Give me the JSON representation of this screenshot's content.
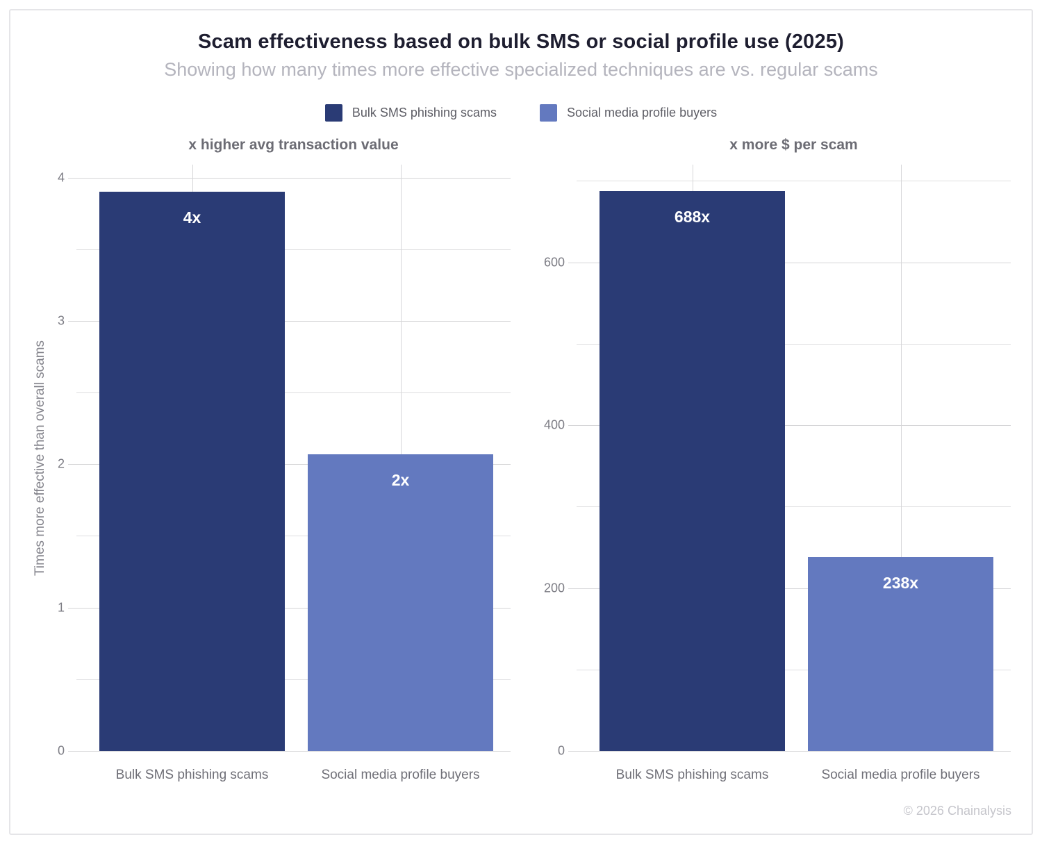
{
  "header": {
    "title": "Scam effectiveness based on bulk SMS or social profile use (2025)",
    "subtitle": "Showing how many times more effective specialized techniques are vs. regular scams"
  },
  "legend": {
    "items": [
      {
        "label": "Bulk SMS phishing scams",
        "color": "#2a3b75"
      },
      {
        "label": "Social media profile buyers",
        "color": "#6379bf"
      }
    ]
  },
  "chart_data": [
    {
      "type": "bar",
      "title": "x higher avg transaction value",
      "ylabel": "Times more effective than overall scams",
      "categories": [
        "Bulk SMS phishing scams",
        "Social media profile buyers"
      ],
      "values": [
        3.9,
        2.07
      ],
      "bar_labels": [
        "4x",
        "2x"
      ],
      "bar_colors": [
        "#2a3b75",
        "#6379bf"
      ],
      "ylim": [
        0,
        4.09
      ],
      "yticks_major": [
        0,
        1,
        2,
        3,
        4
      ],
      "yticks_minor": [
        0.5,
        1.5,
        2.5,
        3.5
      ],
      "grid": "on",
      "legend_position": "top"
    },
    {
      "type": "bar",
      "title": "x more $ per scam",
      "ylabel": "",
      "categories": [
        "Bulk SMS phishing scams",
        "Social media profile buyers"
      ],
      "values": [
        688,
        238
      ],
      "bar_labels": [
        "688x",
        "238x"
      ],
      "bar_colors": [
        "#2a3b75",
        "#6379bf"
      ],
      "ylim": [
        0,
        720
      ],
      "yticks_major": [
        0,
        200,
        400,
        600
      ],
      "yticks_minor": [
        100,
        300,
        500,
        700
      ],
      "grid": "on",
      "legend_position": "top"
    }
  ],
  "footer": {
    "copyright": "© 2026 Chainalysis"
  },
  "colors": {
    "bar_dark": "#2a3b75",
    "bar_light": "#6379bf",
    "gridline_major": "#d4d4d6",
    "gridline_minor": "#dedee0",
    "title_text": "#1e1e30",
    "subtitle_text": "#b4b4bd",
    "axis_text": "#7c7c84",
    "frame_border": "#e5e5e8"
  }
}
